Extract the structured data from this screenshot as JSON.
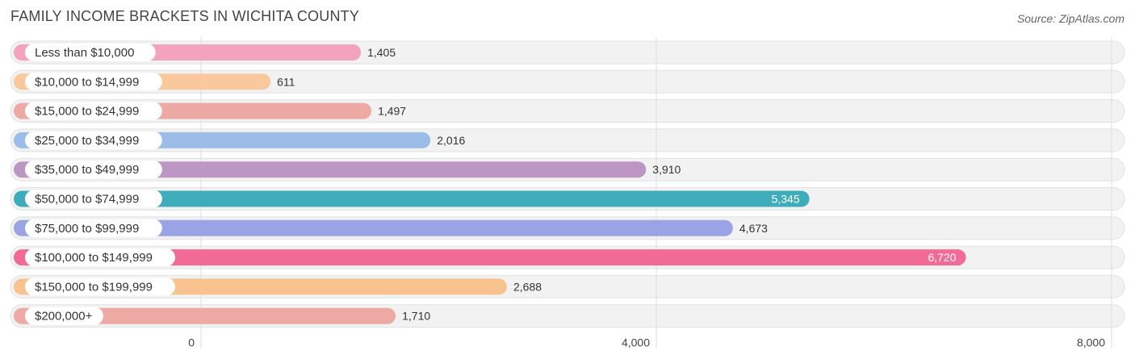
{
  "title": "FAMILY INCOME BRACKETS IN WICHITA COUNTY",
  "source": "Source: ZipAtlas.com",
  "chart_data": {
    "type": "bar",
    "orientation": "horizontal",
    "title": "FAMILY INCOME BRACKETS IN WICHITA COUNTY",
    "categories": [
      "Less than $10,000",
      "$10,000 to $14,999",
      "$15,000 to $24,999",
      "$25,000 to $34,999",
      "$35,000 to $49,999",
      "$50,000 to $74,999",
      "$75,000 to $99,999",
      "$100,000 to $149,999",
      "$150,000 to $199,999",
      "$200,000+"
    ],
    "values": [
      1405,
      611,
      1497,
      2016,
      3910,
      5345,
      4673,
      6720,
      2688,
      1710
    ],
    "value_labels": [
      "1,405",
      "611",
      "1,497",
      "2,016",
      "3,910",
      "5,345",
      "4,673",
      "6,720",
      "2,688",
      "1,710"
    ],
    "colors": [
      "#f4a3bf",
      "#f9c99d",
      "#eda9a4",
      "#9dbde9",
      "#bd97c4",
      "#3eacbb",
      "#9aa3e3",
      "#f26b97",
      "#f9c38f",
      "#eda9a4"
    ],
    "xlim": [
      0,
      8000
    ],
    "xticks": [
      0,
      4000,
      8000
    ],
    "xtick_labels": [
      "0",
      "4,000",
      "8,000"
    ],
    "grid": true
  }
}
